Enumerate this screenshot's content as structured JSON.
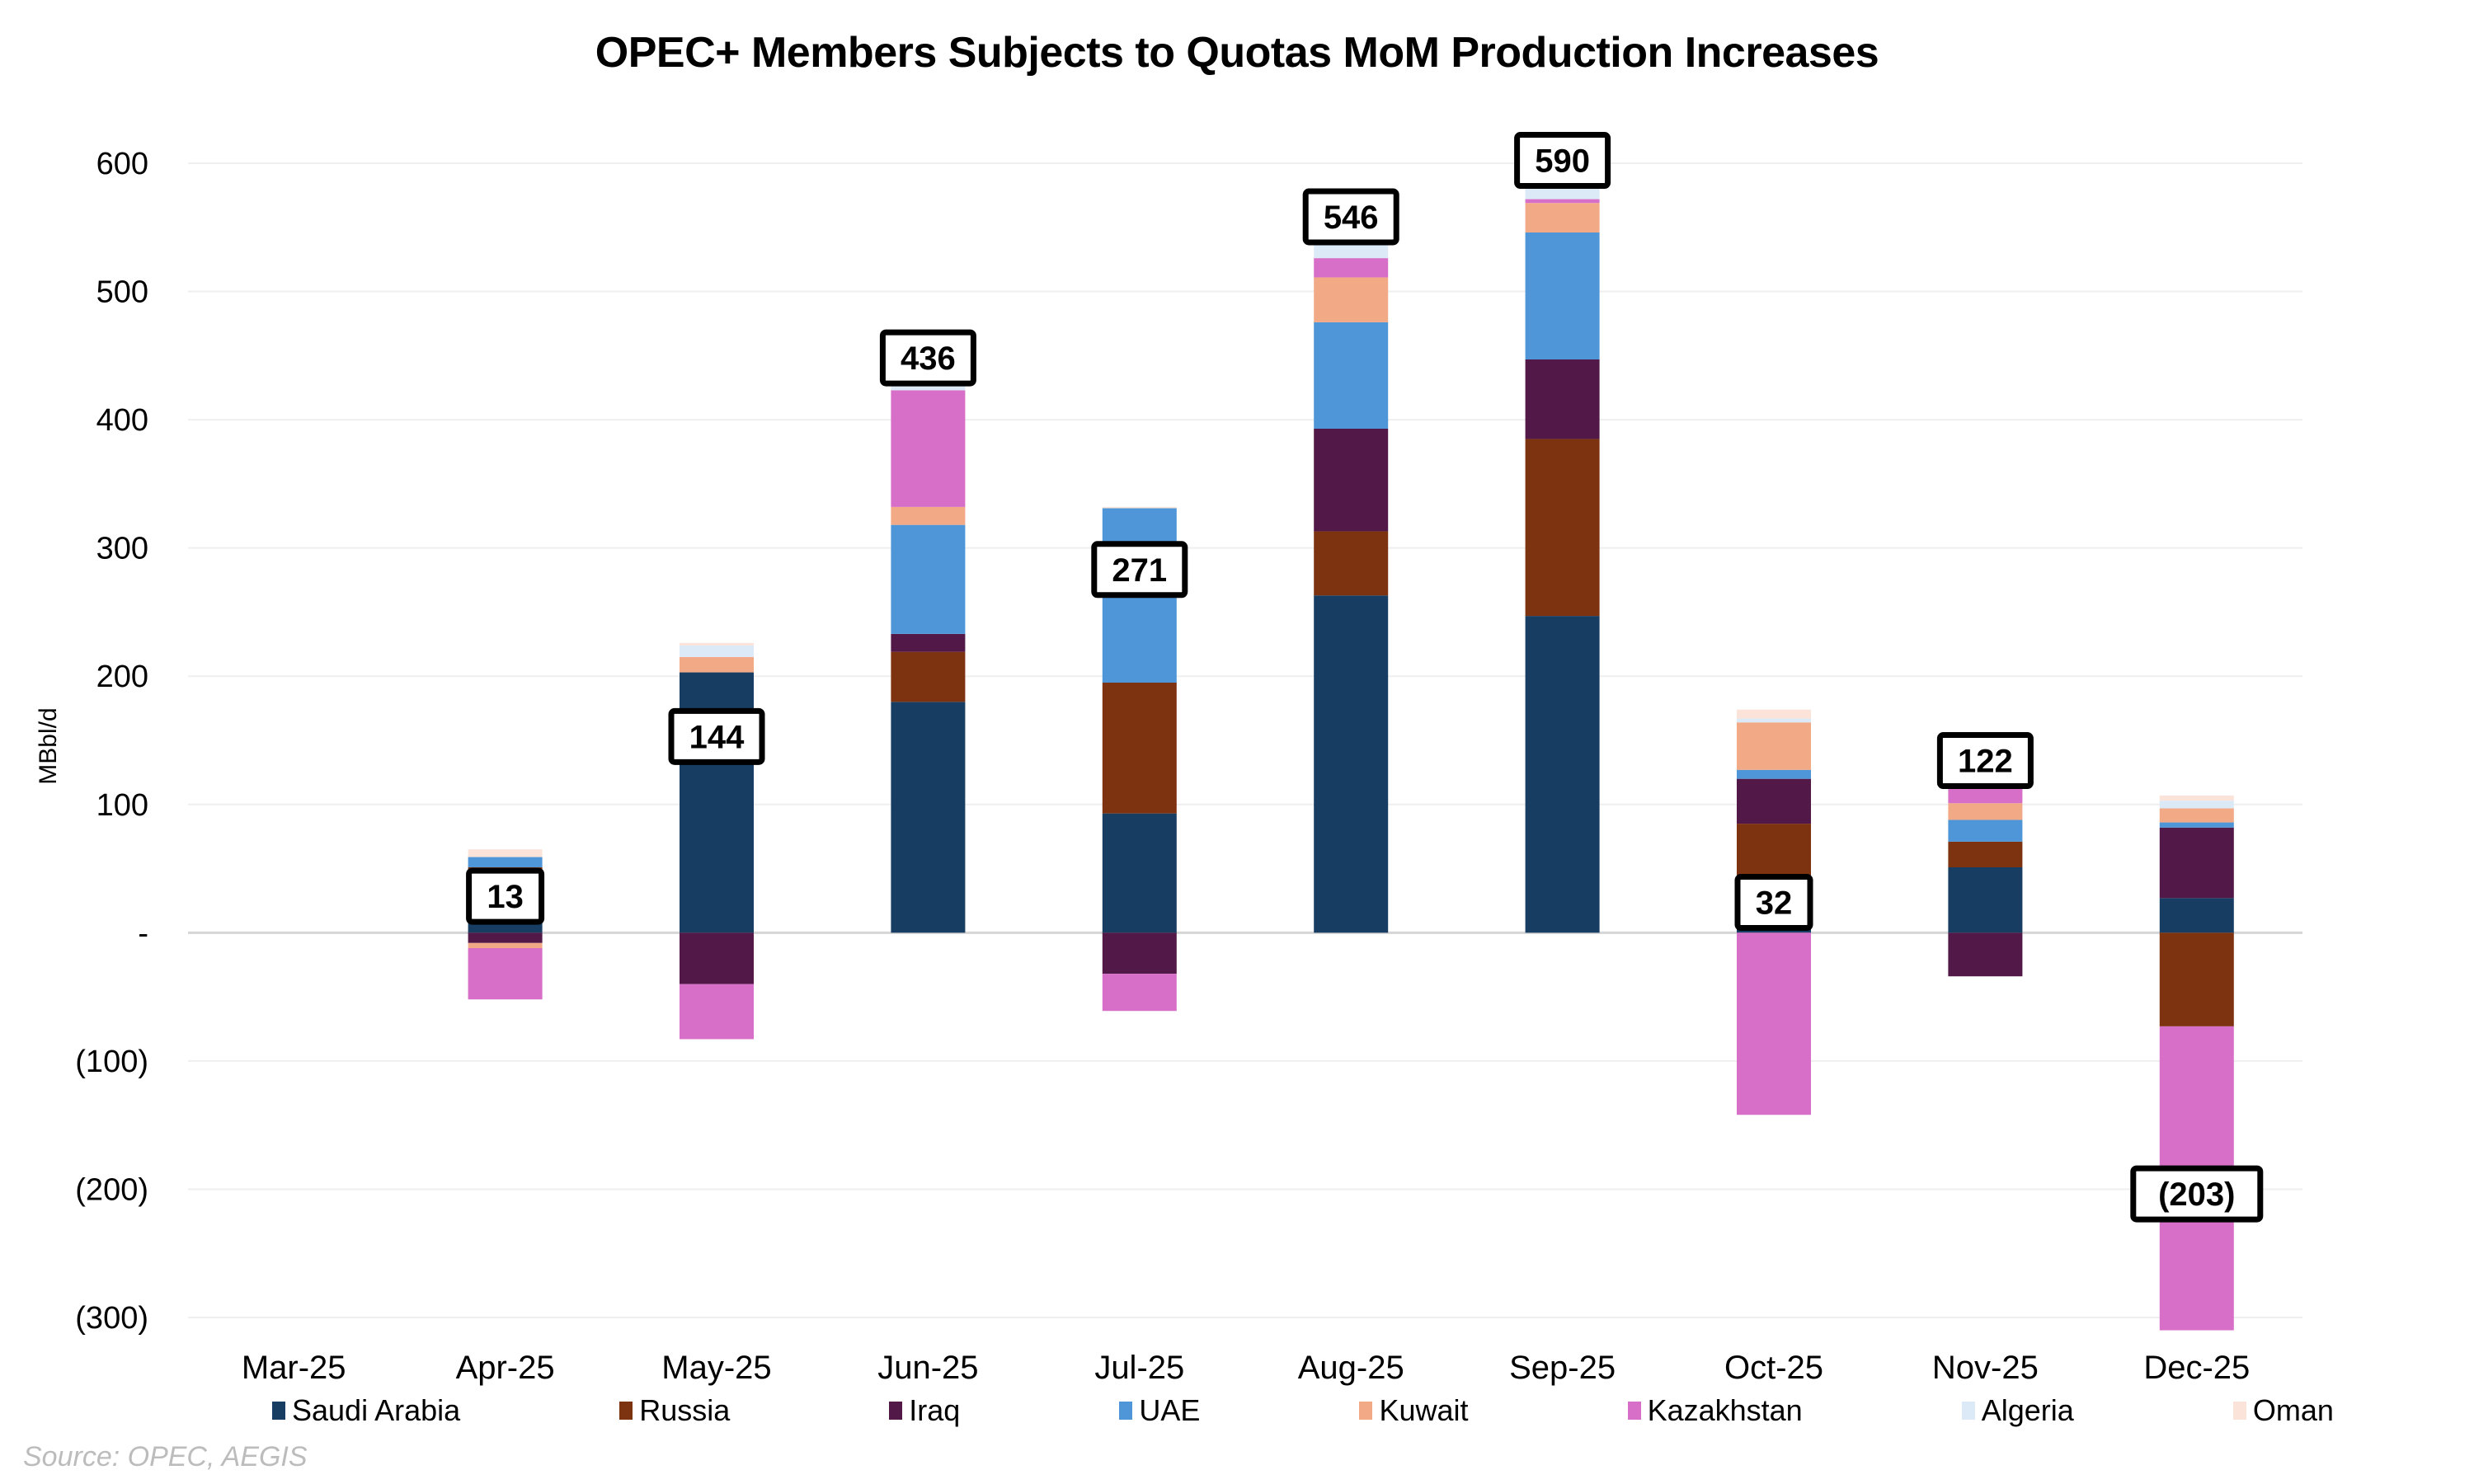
{
  "chart_data": {
    "type": "bar",
    "stacked": true,
    "title": "OPEC+ Members Subjects to Quotas MoM Production Increases",
    "xlabel": "",
    "ylabel": "MBbl/d",
    "ylim": [
      -300,
      600
    ],
    "yticks": [
      600,
      500,
      400,
      300,
      200,
      100,
      0,
      -100,
      -200,
      -300
    ],
    "ytick_labels": [
      "600",
      "500",
      "400",
      "300",
      "200",
      "100",
      "-",
      "(100)",
      "(200)",
      "(300)"
    ],
    "grid": true,
    "legend_position": "bottom",
    "categories": [
      "Mar-25",
      "Apr-25",
      "May-25",
      "Jun-25",
      "Jul-25",
      "Aug-25",
      "Sep-25",
      "Oct-25",
      "Nov-25",
      "Dec-25"
    ],
    "series": [
      {
        "name": "Saudi Arabia",
        "color": "#173D63",
        "values": [
          0,
          41,
          203,
          180,
          93,
          263,
          247,
          39,
          51,
          27
        ]
      },
      {
        "name": "Russia",
        "color": "#7E3310",
        "values": [
          0,
          10,
          0,
          39,
          102,
          50,
          138,
          46,
          20,
          -73
        ]
      },
      {
        "name": "Iraq",
        "color": "#511848",
        "values": [
          0,
          -8,
          -40,
          14,
          -32,
          80,
          62,
          35,
          -34,
          55
        ]
      },
      {
        "name": "UAE",
        "color": "#4F96D8",
        "values": [
          0,
          8,
          0,
          85,
          136,
          83,
          99,
          7,
          17,
          4
        ]
      },
      {
        "name": "Kuwait",
        "color": "#F2A985",
        "values": [
          0,
          -4,
          12,
          14,
          0,
          35,
          23,
          37,
          13,
          11
        ]
      },
      {
        "name": "Kazakhstan",
        "color": "#D76FC9",
        "values": [
          0,
          -40,
          -43,
          91,
          -29,
          15,
          3,
          -142,
          55,
          -237
        ]
      },
      {
        "name": "Algeria",
        "color": "#DCE9F7",
        "values": [
          0,
          0,
          9,
          6,
          0,
          13,
          10,
          3,
          0,
          6
        ]
      },
      {
        "name": "Oman",
        "color": "#FCE3D9",
        "values": [
          0,
          6,
          2,
          7,
          1,
          7,
          8,
          7,
          0,
          4
        ]
      }
    ],
    "totals": [
      null,
      13,
      144,
      436,
      271,
      546,
      590,
      32,
      122,
      -203
    ],
    "total_labels": [
      "",
      "13",
      "144",
      "436",
      "271",
      "546",
      "590",
      "32",
      "122",
      "(203)"
    ]
  },
  "source": "Source: OPEC, AEGIS"
}
